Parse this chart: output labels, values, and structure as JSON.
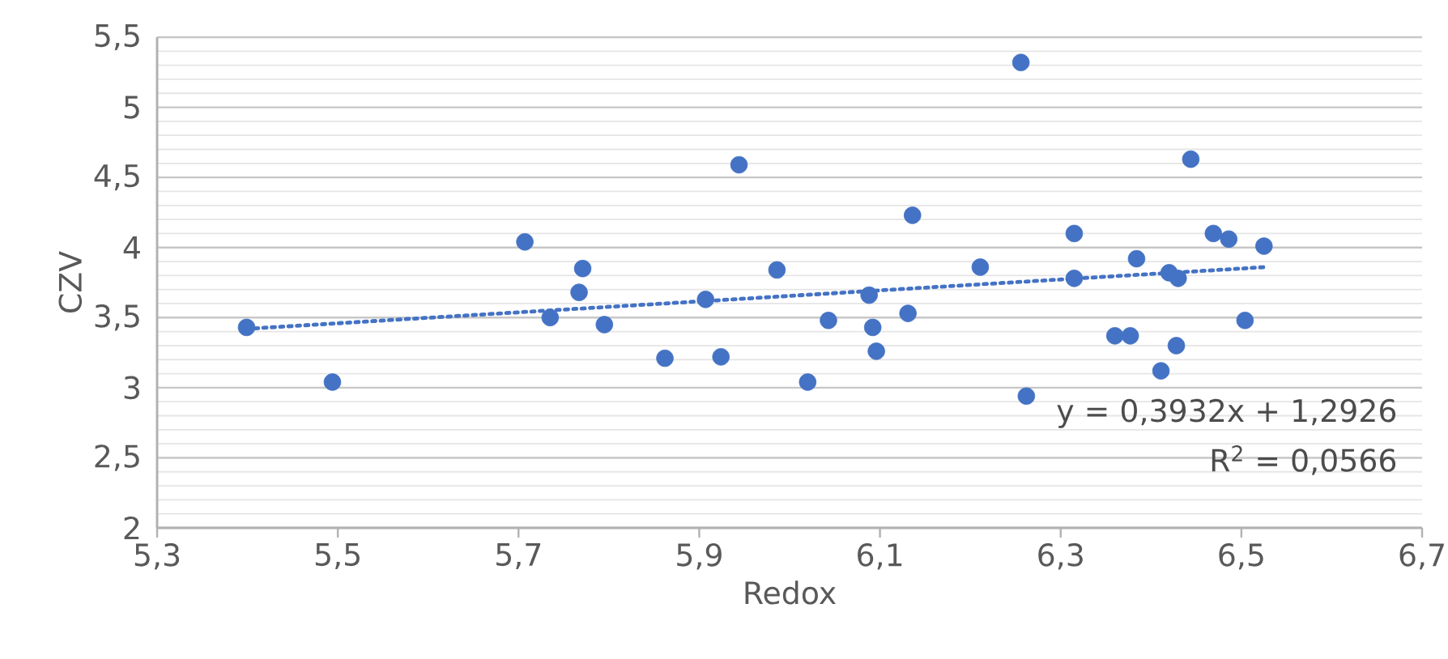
{
  "chart_data": {
    "type": "scatter",
    "xlabel": "Redox",
    "ylabel": "CZV",
    "grid": "y",
    "xlim": [
      5.3,
      6.7
    ],
    "ylim": [
      2,
      5.5
    ],
    "xticks": [
      {
        "value": 5.3,
        "label": "5,3"
      },
      {
        "value": 5.5,
        "label": "5,5"
      },
      {
        "value": 5.7,
        "label": "5,7"
      },
      {
        "value": 5.9,
        "label": "5,9"
      },
      {
        "value": 6.1,
        "label": "6,1"
      },
      {
        "value": 6.3,
        "label": "6,3"
      },
      {
        "value": 6.5,
        "label": "6,5"
      },
      {
        "value": 6.7,
        "label": "6,7"
      }
    ],
    "yticks": [
      2,
      {
        "value": 2.5,
        "label": "2,5"
      },
      3,
      {
        "value": 3.5,
        "label": "3,5"
      },
      4,
      {
        "value": 4.5,
        "label": "4,5"
      },
      5,
      {
        "value": 5.5,
        "label": "5,5"
      }
    ],
    "series": [
      {
        "color": "#4472c4",
        "marker": "circle",
        "x": [
          5.399,
          5.494,
          5.707,
          5.735,
          5.767,
          5.771,
          5.795,
          5.862,
          5.907,
          5.924,
          5.944,
          5.986,
          6.02,
          6.043,
          6.088,
          6.092,
          6.096,
          6.131,
          6.136,
          6.211,
          6.256,
          6.262,
          6.315,
          6.315,
          6.36,
          6.377,
          6.384,
          6.411,
          6.42,
          6.43,
          6.428,
          6.444,
          6.469,
          6.486,
          6.504,
          6.525
        ],
        "values": [
          3.43,
          3.04,
          4.04,
          3.5,
          3.68,
          3.85,
          3.45,
          3.21,
          3.63,
          3.22,
          4.59,
          3.84,
          3.04,
          3.48,
          3.66,
          3.43,
          3.26,
          3.53,
          4.23,
          3.86,
          5.32,
          2.94,
          4.1,
          3.78,
          3.37,
          3.37,
          3.92,
          3.12,
          3.82,
          3.78,
          3.3,
          4.63,
          4.1,
          4.06,
          3.48,
          4.01
        ]
      },
      {
        "type": "line",
        "color": "#4472c4",
        "line_style": "dotted",
        "marker": "none",
        "x": [
          5.399,
          6.525
        ],
        "values": [
          3.42,
          3.86
        ]
      }
    ],
    "annotations": [
      "y = 0,3932x + 1,2926",
      "R$^{2}$ = 0,0566"
    ]
  }
}
